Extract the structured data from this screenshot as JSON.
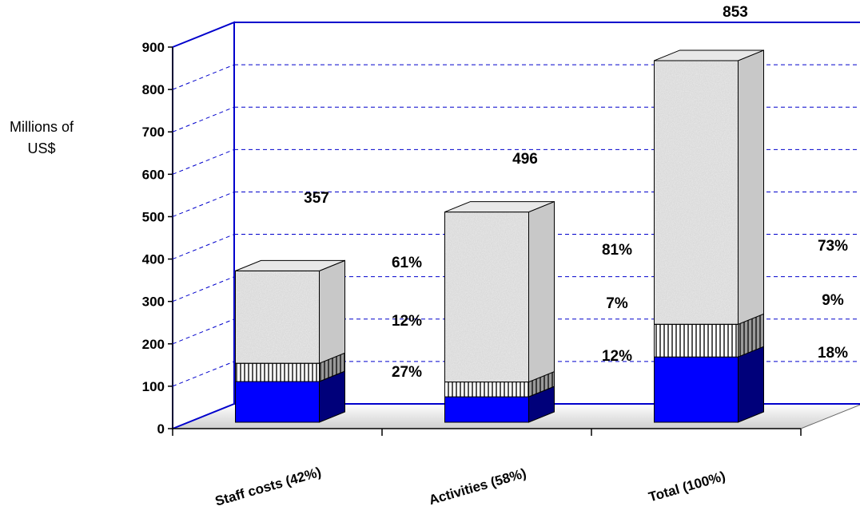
{
  "chart_data": {
    "type": "bar",
    "stacked": true,
    "three_d": true,
    "title": "",
    "ylabel_lines": [
      "Millions of",
      "US$"
    ],
    "xlabel": "",
    "ylim": [
      0,
      900
    ],
    "yticks": [
      "0",
      "100",
      "200",
      "300",
      "400",
      "500",
      "600",
      "700",
      "800",
      "900"
    ],
    "grid": true,
    "categories": [
      "Staff costs (42%)",
      "Activities (58%)",
      "Total (100%)"
    ],
    "totals": [
      357,
      496,
      853
    ],
    "totals_text": [
      "357",
      "496",
      "853"
    ],
    "series": [
      {
        "values": [
          96,
          60,
          154
        ],
        "percent_labels": [
          "27%",
          "12%",
          "18%"
        ]
      },
      {
        "values": [
          43,
          35,
          77
        ],
        "percent_labels": [
          "12%",
          "7%",
          "9%"
        ]
      },
      {
        "values": [
          218,
          401,
          622
        ],
        "percent_labels": [
          "61%",
          "81%",
          "73%"
        ]
      }
    ],
    "colors": {
      "series": [
        "#0000ff",
        "#ffffff",
        "#d6d6d6"
      ],
      "series_side": [
        "#00007a",
        "#7a7a7a",
        "#c4c4c4"
      ],
      "wall_line": "#0000cc",
      "grid": "#0000cc",
      "floor": "#e0e0e0"
    }
  }
}
